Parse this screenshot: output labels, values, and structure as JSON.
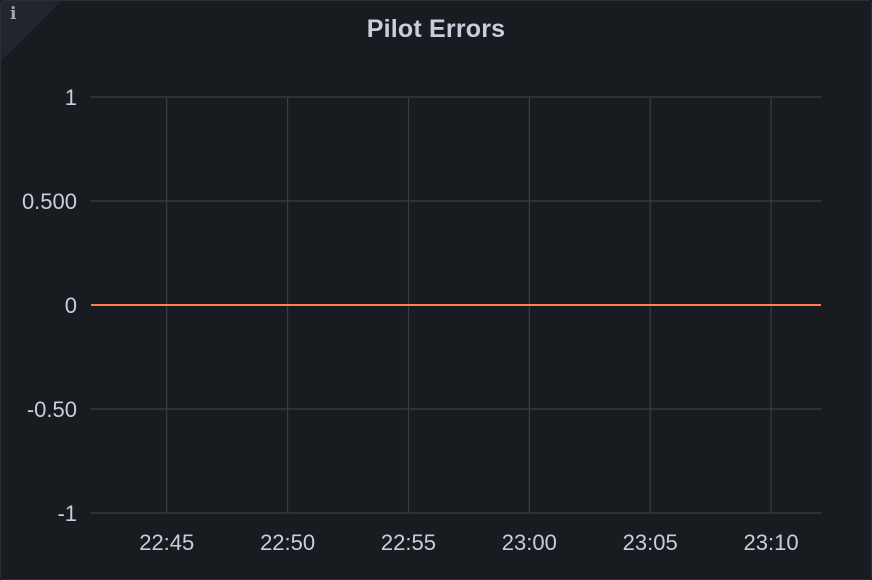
{
  "panel": {
    "title": "Pilot Errors",
    "info_icon": "info-icon",
    "info_icon_glyph": "i"
  },
  "chart_data": {
    "type": "line",
    "title": "Pilot Errors",
    "xlabel": "",
    "ylabel": "",
    "x_ticks": [
      "22:45",
      "22:50",
      "22:55",
      "23:00",
      "23:05",
      "23:10"
    ],
    "y_ticks": [
      {
        "value": 1,
        "label": "1"
      },
      {
        "value": 0.5,
        "label": "0.500"
      },
      {
        "value": 0,
        "label": "0"
      },
      {
        "value": -0.5,
        "label": "-0.50"
      },
      {
        "value": -1,
        "label": "-1"
      }
    ],
    "ylim": [
      -1,
      1
    ],
    "xlim": [
      "22:41:52",
      "23:12:04"
    ],
    "grid": true,
    "legend": "none",
    "series": [
      {
        "color": "#ff7f50",
        "x": [
          "22:41:52",
          "23:12:04"
        ],
        "values": [
          0,
          0
        ]
      }
    ]
  }
}
